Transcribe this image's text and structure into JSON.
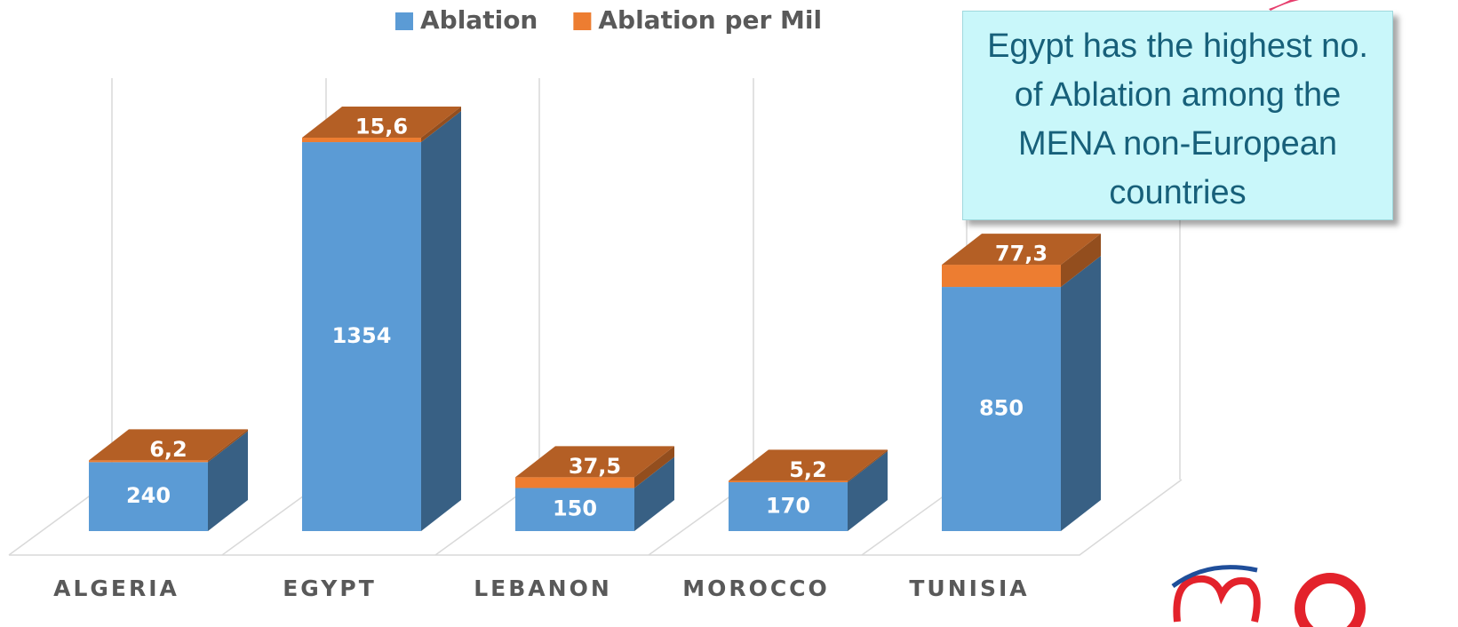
{
  "chart_data": {
    "type": "bar3d-stacked",
    "categories": [
      "ALGERIA",
      "EGYPT",
      "LEBANON",
      "MOROCCO",
      "TUNISIA"
    ],
    "series": [
      {
        "name": "Ablation",
        "color": "#5b9bd5",
        "values": [
          240,
          1354,
          150,
          170,
          850
        ]
      },
      {
        "name": "Ablation per Mil",
        "color": "#ed7d31",
        "values": [
          6.2,
          15.6,
          37.5,
          5.2,
          77.3
        ],
        "value_labels": [
          "6,2",
          "15,6",
          "37,5",
          "5,2",
          "77,3"
        ]
      }
    ],
    "annotation": "Egypt has the highest no. of Ablation among the MENA non-European countries"
  }
}
